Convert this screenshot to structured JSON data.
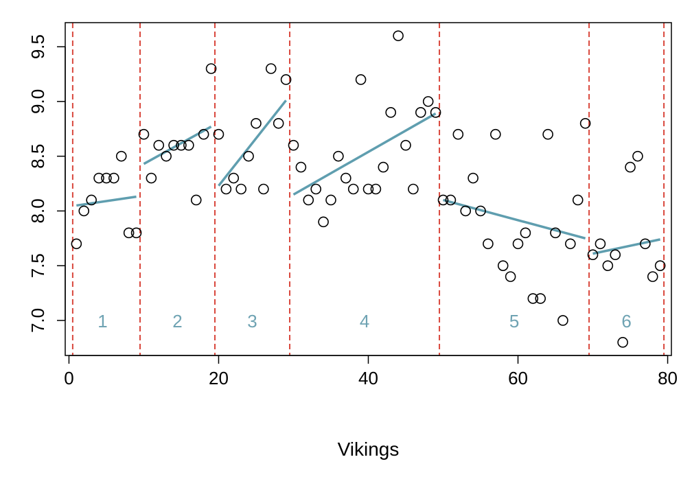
{
  "chart_data": {
    "type": "scatter",
    "title": "",
    "xlabel": "Vikings",
    "ylabel": "",
    "xlim": [
      -0.5,
      80.5
    ],
    "ylim": [
      6.68,
      9.72
    ],
    "xticks": [
      0,
      20,
      40,
      60,
      80
    ],
    "yticks": [
      7.0,
      7.5,
      8.0,
      8.5,
      9.0,
      9.5
    ],
    "xtick_labels": [
      "0",
      "20",
      "40",
      "60",
      "80"
    ],
    "ytick_labels": [
      "7.0",
      "7.5",
      "8.0",
      "8.5",
      "9.0",
      "9.5"
    ],
    "grid": false,
    "colors": {
      "points": "#000000",
      "trend": "#5f9eaf",
      "breaks": "#d9473c",
      "segment_labels": "#6fa3b3"
    },
    "points": [
      [
        1,
        7.7
      ],
      [
        2,
        8.0
      ],
      [
        3,
        8.1
      ],
      [
        4,
        8.3
      ],
      [
        5,
        8.3
      ],
      [
        6,
        8.3
      ],
      [
        7,
        8.5
      ],
      [
        8,
        7.8
      ],
      [
        9,
        7.8
      ],
      [
        10,
        8.7
      ],
      [
        11,
        8.3
      ],
      [
        12,
        8.6
      ],
      [
        13,
        8.5
      ],
      [
        14,
        8.6
      ],
      [
        15,
        8.6
      ],
      [
        16,
        8.6
      ],
      [
        17,
        8.1
      ],
      [
        18,
        8.7
      ],
      [
        19,
        9.3
      ],
      [
        20,
        8.7
      ],
      [
        21,
        8.2
      ],
      [
        22,
        8.3
      ],
      [
        23,
        8.2
      ],
      [
        24,
        8.5
      ],
      [
        25,
        8.8
      ],
      [
        26,
        8.2
      ],
      [
        27,
        9.3
      ],
      [
        28,
        8.8
      ],
      [
        29,
        9.2
      ],
      [
        30,
        8.6
      ],
      [
        31,
        8.4
      ],
      [
        32,
        8.1
      ],
      [
        33,
        8.2
      ],
      [
        34,
        7.9
      ],
      [
        35,
        8.1
      ],
      [
        36,
        8.5
      ],
      [
        37,
        8.3
      ],
      [
        38,
        8.2
      ],
      [
        39,
        9.2
      ],
      [
        40,
        8.2
      ],
      [
        41,
        8.2
      ],
      [
        42,
        8.4
      ],
      [
        43,
        8.9
      ],
      [
        44,
        9.6
      ],
      [
        45,
        8.6
      ],
      [
        46,
        8.2
      ],
      [
        47,
        8.9
      ],
      [
        48,
        9.0
      ],
      [
        49,
        8.9
      ],
      [
        50,
        8.1
      ],
      [
        51,
        8.1
      ],
      [
        52,
        8.7
      ],
      [
        53,
        8.0
      ],
      [
        54,
        8.3
      ],
      [
        55,
        8.0
      ],
      [
        56,
        7.7
      ],
      [
        57,
        8.7
      ],
      [
        58,
        7.5
      ],
      [
        59,
        7.4
      ],
      [
        60,
        7.7
      ],
      [
        61,
        7.8
      ],
      [
        62,
        7.2
      ],
      [
        63,
        7.2
      ],
      [
        64,
        8.7
      ],
      [
        65,
        7.8
      ],
      [
        66,
        7.0
      ],
      [
        67,
        7.7
      ],
      [
        68,
        8.1
      ],
      [
        69,
        8.8
      ],
      [
        70,
        7.6
      ],
      [
        71,
        7.7
      ],
      [
        72,
        7.5
      ],
      [
        73,
        7.6
      ],
      [
        74,
        6.8
      ],
      [
        75,
        8.4
      ],
      [
        76,
        8.5
      ],
      [
        77,
        7.7
      ],
      [
        78,
        7.4
      ],
      [
        79,
        7.5
      ]
    ],
    "breakpoints": [
      0.5,
      9.5,
      19.5,
      29.5,
      49.5,
      69.5,
      79.5
    ],
    "trend_segments": [
      {
        "label": "1",
        "x": [
          1,
          9
        ],
        "y": [
          8.05,
          8.13
        ],
        "label_x": 4.5
      },
      {
        "label": "2",
        "x": [
          10,
          19
        ],
        "y": [
          8.43,
          8.77
        ],
        "label_x": 14.5
      },
      {
        "label": "3",
        "x": [
          20,
          29
        ],
        "y": [
          8.23,
          9.01
        ],
        "label_x": 24.5
      },
      {
        "label": "4",
        "x": [
          30,
          49
        ],
        "y": [
          8.15,
          8.89
        ],
        "label_x": 39.5
      },
      {
        "label": "5",
        "x": [
          50,
          69
        ],
        "y": [
          8.1,
          7.75
        ],
        "label_x": 59.5
      },
      {
        "label": "6",
        "x": [
          70,
          79
        ],
        "y": [
          7.61,
          7.74
        ],
        "label_x": 74.5
      }
    ],
    "segment_label_y": 6.98
  }
}
